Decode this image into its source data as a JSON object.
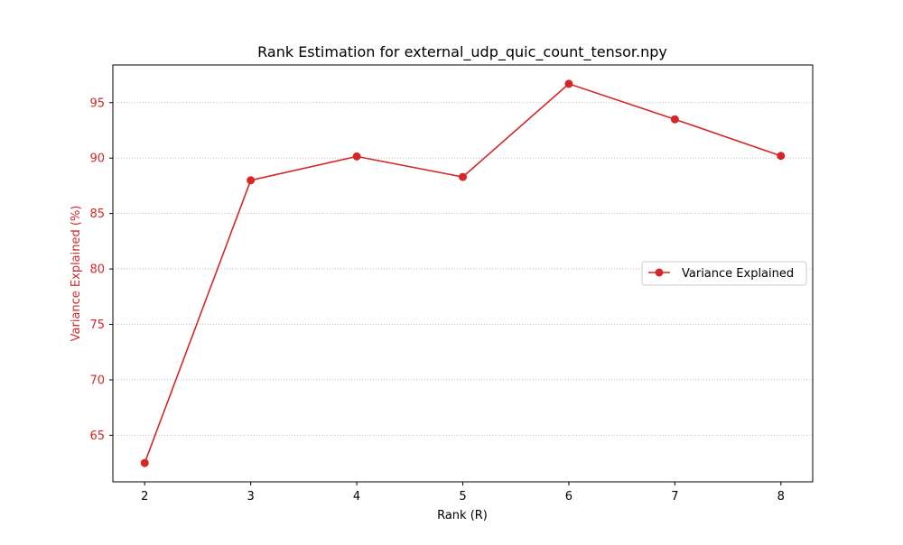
{
  "chart_data": {
    "type": "line",
    "title": "Rank Estimation for external_udp_quic_count_tensor.npy",
    "xlabel": "Rank (R)",
    "ylabel": "Variance Explained (%)",
    "x": [
      2,
      3,
      4,
      5,
      6,
      7,
      8
    ],
    "series": [
      {
        "name": "Variance Explained",
        "values": [
          62.5,
          88.0,
          90.15,
          88.3,
          96.7,
          93.5,
          90.2
        ],
        "color": "#d62728",
        "marker": "circle"
      }
    ],
    "xticks": [
      "2",
      "3",
      "4",
      "5",
      "6",
      "7",
      "8"
    ],
    "yticks": [
      "65",
      "70",
      "75",
      "80",
      "85",
      "90",
      "95"
    ],
    "xlim": [
      1.7,
      8.3
    ],
    "ylim": [
      60.8,
      98.4
    ],
    "grid": "horizontal dotted",
    "legend_position": "center-right",
    "ylabel_color": "#d62728",
    "ytick_color": "#d62728"
  }
}
